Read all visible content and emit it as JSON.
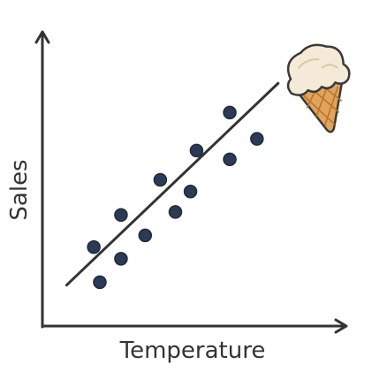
{
  "chart_data": {
    "type": "scatter",
    "xlabel": "Temperature",
    "ylabel": "Sales",
    "grid": false,
    "xlim": [
      0,
      100
    ],
    "ylim": [
      0,
      100
    ],
    "points": [
      {
        "x": 17,
        "y": 27
      },
      {
        "x": 19,
        "y": 15
      },
      {
        "x": 26,
        "y": 38
      },
      {
        "x": 26,
        "y": 23
      },
      {
        "x": 34,
        "y": 31
      },
      {
        "x": 39,
        "y": 50
      },
      {
        "x": 44,
        "y": 39
      },
      {
        "x": 49,
        "y": 46
      },
      {
        "x": 51,
        "y": 60
      },
      {
        "x": 62,
        "y": 57
      },
      {
        "x": 62,
        "y": 73
      },
      {
        "x": 71,
        "y": 64
      }
    ],
    "trendline": {
      "x": [
        8,
        78
      ],
      "y": [
        14,
        83
      ]
    }
  },
  "colors": {
    "axis": "#333333",
    "point_fill": "#2b3a55",
    "trend": "#333333",
    "cream": "#f4ead7",
    "cone": "#e2a45c",
    "outline": "#3a3a3a"
  },
  "icons": {
    "decoration": "ice-cream-cone-icon"
  }
}
